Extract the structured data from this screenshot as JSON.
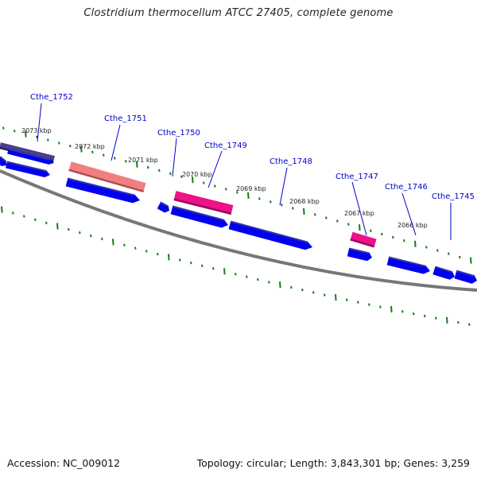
{
  "title": "Clostridium thermocellum ATCC 27405, complete genome",
  "footer": {
    "accession": "Accession: NC_009012",
    "summary": "Topology: circular; Length: 3,843,301 bp; Genes: 3,259"
  },
  "colors": {
    "backbone": "#777777",
    "tick": "#1b7a1b",
    "cds_plus": "#0000ee",
    "cds_minus": "#0000ee",
    "gene_label": "#0000cc",
    "highlight_pink": "#ee1188",
    "highlight_salmon": "#f08080",
    "highlight_slate": "#4a3f8a"
  },
  "kbp_labels": [
    "2073 kbp",
    "2072 kbp",
    "2071 kbp",
    "2070 kbp",
    "2069 kbp",
    "2068 kbp",
    "2067 kbp",
    "2066 kbp"
  ],
  "gene_labels": [
    "Cthe_1752",
    "Cthe_1751",
    "Cthe_1750",
    "Cthe_1749",
    "Cthe_1748",
    "Cthe_1747",
    "Cthe_1746",
    "Cthe_1745"
  ]
}
